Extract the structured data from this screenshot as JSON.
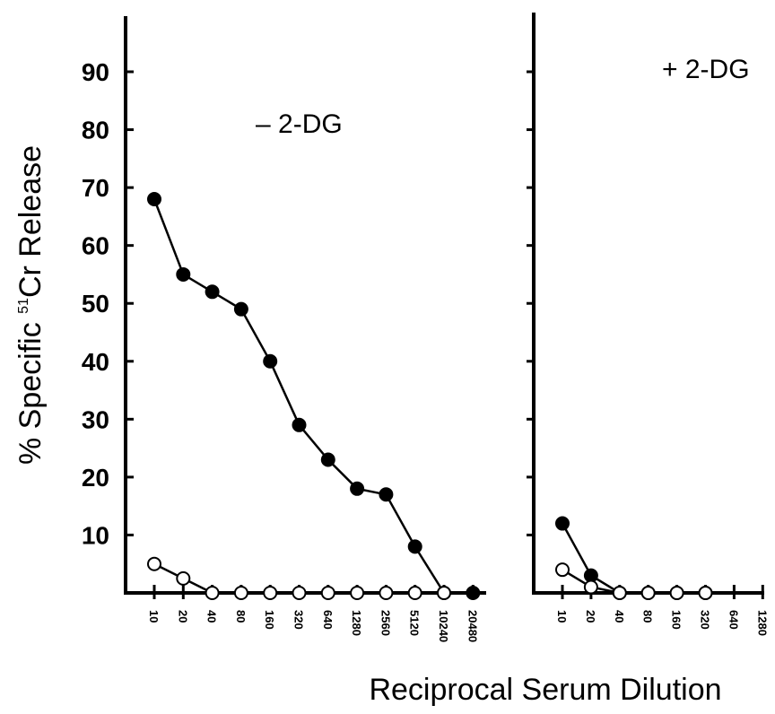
{
  "chart_data": [
    {
      "type": "line",
      "title": "",
      "panel_label": "– 2-DG",
      "ylabel": "% Specific 51Cr Release",
      "ylabel_parts": {
        "prefix": "% Specific ",
        "superscript": "51",
        "suffix": "Cr Release"
      },
      "xlabel": "Reciprocal Serum Dilution",
      "ylim": [
        0,
        100
      ],
      "yticks": [
        10,
        20,
        30,
        40,
        50,
        60,
        70,
        80,
        90
      ],
      "categories": [
        "10",
        "20",
        "40",
        "80",
        "160",
        "320",
        "640",
        "1280",
        "2560",
        "5120",
        "10240",
        "20480"
      ],
      "series": [
        {
          "marker": "filled",
          "values": [
            68,
            55,
            52,
            49,
            40,
            29,
            23,
            18,
            17,
            8,
            0,
            0
          ]
        },
        {
          "marker": "open",
          "values": [
            5,
            2.5,
            0,
            0,
            0,
            0,
            0,
            0,
            0,
            0,
            0,
            null
          ]
        }
      ],
      "grid": false
    },
    {
      "type": "line",
      "title": "",
      "panel_label": "+ 2-DG",
      "ylim": [
        0,
        100
      ],
      "categories": [
        "10",
        "20",
        "40",
        "80",
        "160",
        "320",
        "640",
        "1280"
      ],
      "series": [
        {
          "marker": "filled",
          "values": [
            12,
            3,
            0,
            0,
            0,
            0,
            null,
            null
          ]
        },
        {
          "marker": "open",
          "values": [
            4,
            1,
            0,
            0,
            0,
            0,
            null,
            null
          ]
        }
      ],
      "grid": false
    }
  ]
}
